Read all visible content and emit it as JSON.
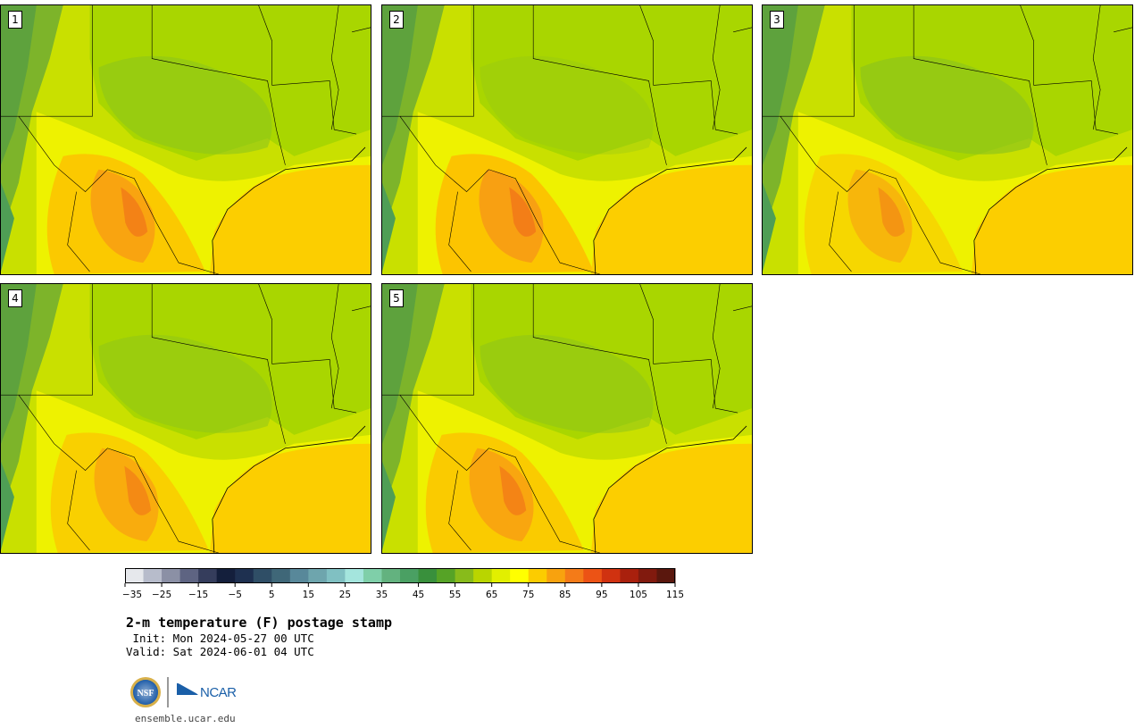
{
  "panels": [
    {
      "label": "1"
    },
    {
      "label": "2"
    },
    {
      "label": "3"
    },
    {
      "label": "4"
    },
    {
      "label": "5"
    }
  ],
  "colorbar": {
    "tick_labels": [
      "−35",
      "−25",
      "−15",
      "−5",
      "5",
      "15",
      "25",
      "35",
      "45",
      "55",
      "65",
      "75",
      "85",
      "95",
      "105",
      "115"
    ],
    "colors": [
      "#e6e8ec",
      "#b7bccb",
      "#8b90a5",
      "#5e6482",
      "#353d5c",
      "#141f3c",
      "#1e3050",
      "#2f4e66",
      "#3f6778",
      "#58889a",
      "#6ea5ad",
      "#80c0c2",
      "#a4e5dd",
      "#7fcfa9",
      "#63b27f",
      "#4aa063",
      "#39903c",
      "#56a326",
      "#88bb1b",
      "#b9d500",
      "#e2ef00",
      "#ffff00",
      "#fccc00",
      "#f8a20e",
      "#f47b18",
      "#ec5315",
      "#d03210",
      "#a9200d",
      "#811a0e",
      "#5a170d"
    ]
  },
  "title": "2-m temperature (F) postage stamp",
  "init": " Init: Mon 2024-05-27 00 UTC",
  "valid": "Valid: Sat 2024-06-01 04 UTC",
  "logos": {
    "nsf": "NSF",
    "ncar": "NCAR"
  },
  "footer_url": "ensemble.ucar.edu"
}
